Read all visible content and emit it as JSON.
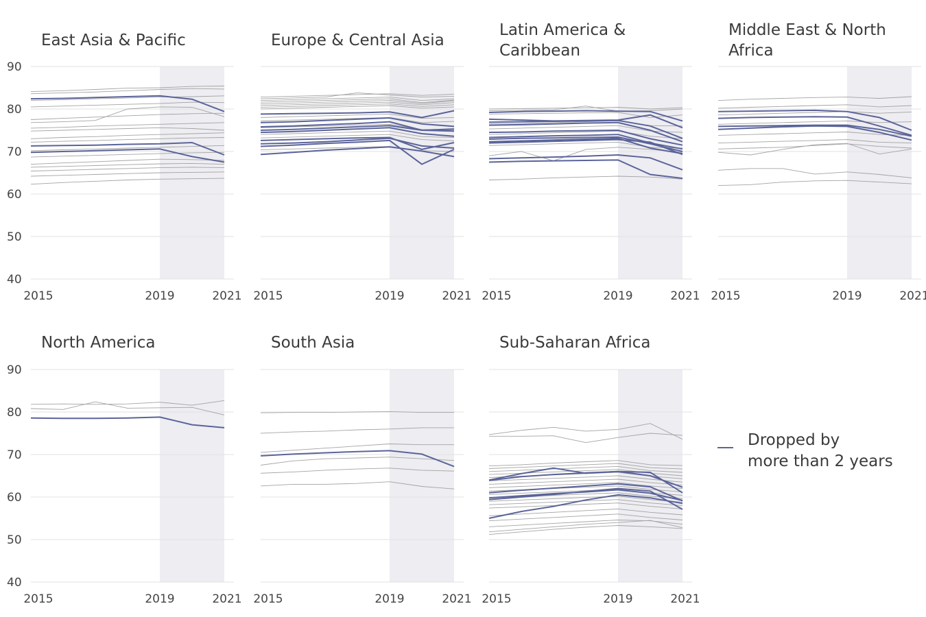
{
  "chart_data": {
    "type": "line",
    "facet_by": "region",
    "x": [
      2015,
      2016,
      2017,
      2018,
      2019,
      2020,
      2021
    ],
    "x_ticks": [
      2015,
      2019,
      2021
    ],
    "y_ticks": [
      40,
      50,
      60,
      70,
      80,
      90
    ],
    "ylim": [
      40,
      90
    ],
    "shaded_x_range": [
      2019,
      2021
    ],
    "grid": "horizontal",
    "colors": {
      "highlight": "#5a6399",
      "context": "#a3a3a3",
      "shade": "#ededf2",
      "grid": "#e6e6e6"
    },
    "legend": {
      "label_lines": [
        "Dropped by",
        "more than 2 years"
      ],
      "placement": "right"
    },
    "panels": [
      {
        "title_lines": [
          "East Asia & Pacific"
        ],
        "highlighted": [
          [
            82.4,
            82.5,
            82.7,
            82.9,
            83.1,
            82.3,
            79.4
          ],
          [
            71.3,
            71.4,
            71.5,
            71.7,
            71.8,
            72.1,
            69.2
          ],
          [
            69.8,
            70.0,
            70.2,
            70.4,
            70.6,
            68.8,
            67.5
          ]
        ],
        "context": [
          [
            84.1,
            84.3,
            84.6,
            84.9,
            85.0,
            85.3,
            85.4
          ],
          [
            83.6,
            83.8,
            84.0,
            84.3,
            84.6,
            84.8,
            84.7
          ],
          [
            82.0,
            82.2,
            82.4,
            82.6,
            82.8,
            82.9,
            83.1
          ],
          [
            80.5,
            80.7,
            80.9,
            81.1,
            81.3,
            81.6,
            81.5
          ],
          [
            77.5,
            77.8,
            78.1,
            78.4,
            78.7,
            78.9,
            79.0
          ],
          [
            76.8,
            77.0,
            77.3,
            80.0,
            80.5,
            80.4,
            78.2
          ],
          [
            75.5,
            75.7,
            76.0,
            76.2,
            76.4,
            76.6,
            76.8
          ],
          [
            74.8,
            75.0,
            75.2,
            75.4,
            75.6,
            75.4,
            75.0
          ],
          [
            73.0,
            73.3,
            73.5,
            73.8,
            74.0,
            74.2,
            74.4
          ],
          [
            72.2,
            72.4,
            72.6,
            72.8,
            73.0,
            73.2,
            73.3
          ],
          [
            70.2,
            70.4,
            70.6,
            70.8,
            71.0,
            71.2,
            71.4
          ],
          [
            68.7,
            68.9,
            69.1,
            69.3,
            69.5,
            69.7,
            69.8
          ],
          [
            67.0,
            67.3,
            67.6,
            67.9,
            68.2,
            68.1,
            67.9
          ],
          [
            66.3,
            66.5,
            66.7,
            66.9,
            67.1,
            67.2,
            67.0
          ],
          [
            65.4,
            65.6,
            65.8,
            66.0,
            66.2,
            66.3,
            66.2
          ],
          [
            64.2,
            64.4,
            64.6,
            64.8,
            65.0,
            65.1,
            65.2
          ],
          [
            62.3,
            62.7,
            63.0,
            63.3,
            63.5,
            63.6,
            63.7
          ]
        ]
      },
      {
        "title_lines": [
          "Europe & Central Asia"
        ],
        "highlighted": [
          [
            78.8,
            78.9,
            79.0,
            79.1,
            79.3,
            78.0,
            79.6
          ],
          [
            76.8,
            77.0,
            77.3,
            77.6,
            77.9,
            76.5,
            75.9
          ],
          [
            75.8,
            76.0,
            76.3,
            76.6,
            77.0,
            75.0,
            75.3
          ],
          [
            75.0,
            75.2,
            75.5,
            75.8,
            76.1,
            75.0,
            74.8
          ],
          [
            74.5,
            74.7,
            75.0,
            75.3,
            75.6,
            74.2,
            73.6
          ],
          [
            72.6,
            72.8,
            73.0,
            73.2,
            73.3,
            70.5,
            72.1
          ],
          [
            71.8,
            72.0,
            72.3,
            72.7,
            73.1,
            71.3,
            70.8
          ],
          [
            71.2,
            71.5,
            71.9,
            72.2,
            72.6,
            67.0,
            70.5
          ],
          [
            69.3,
            69.8,
            70.3,
            70.7,
            71.1,
            70.1,
            68.8
          ]
        ],
        "context": [
          [
            82.8,
            83.0,
            83.2,
            83.4,
            83.6,
            83.2,
            83.5
          ],
          [
            82.4,
            82.6,
            82.8,
            83.8,
            83.3,
            82.8,
            83.0
          ],
          [
            82.0,
            82.2,
            82.4,
            82.6,
            82.8,
            82.0,
            82.4
          ],
          [
            81.6,
            81.8,
            82.0,
            82.2,
            82.4,
            81.5,
            82.1
          ],
          [
            81.2,
            81.4,
            81.6,
            81.8,
            82.0,
            81.3,
            81.9
          ],
          [
            80.8,
            81.0,
            81.2,
            81.4,
            81.6,
            81.0,
            81.5
          ],
          [
            80.4,
            80.6,
            80.8,
            81.0,
            81.2,
            80.6,
            81.0
          ],
          [
            80.0,
            80.2,
            80.4,
            80.6,
            80.8,
            80.2,
            80.5
          ],
          [
            78.0,
            78.2,
            78.4,
            78.6,
            78.8,
            77.8,
            78.0
          ],
          [
            77.2,
            77.4,
            77.6,
            77.8,
            78.0,
            76.8,
            77.1
          ],
          [
            75.6,
            75.8,
            76.0,
            76.2,
            76.4,
            75.2,
            75.0
          ],
          [
            74.0,
            74.2,
            74.4,
            74.6,
            74.8,
            73.5,
            73.3
          ],
          [
            73.2,
            73.4,
            73.6,
            73.8,
            74.0,
            72.8,
            72.5
          ],
          [
            70.4,
            70.6,
            70.8,
            71.0,
            71.2,
            70.2,
            70.0
          ]
        ]
      },
      {
        "title_lines": [
          "Latin America &",
          "Caribbean"
        ],
        "highlighted": [
          [
            79.2,
            79.4,
            79.5,
            79.6,
            79.5,
            79.4,
            77.2
          ],
          [
            77.6,
            77.4,
            77.2,
            77.3,
            77.4,
            78.6,
            75.6
          ],
          [
            76.9,
            77.0,
            77.1,
            77.2,
            77.3,
            76.0,
            73.1
          ],
          [
            76.2,
            76.3,
            76.5,
            76.7,
            76.8,
            75.0,
            72.3
          ],
          [
            74.5,
            74.6,
            74.8,
            74.9,
            75.0,
            73.0,
            71.5
          ],
          [
            73.3,
            73.5,
            73.7,
            73.8,
            74.0,
            72.0,
            70.6
          ],
          [
            72.9,
            73.1,
            73.2,
            73.3,
            73.4,
            71.8,
            70.0
          ],
          [
            72.3,
            72.5,
            72.7,
            72.9,
            73.1,
            70.8,
            69.5
          ],
          [
            72.0,
            72.2,
            72.4,
            72.6,
            72.8,
            72.2,
            69.3
          ],
          [
            68.3,
            68.5,
            68.7,
            68.9,
            69.2,
            68.5,
            65.7
          ],
          [
            67.5,
            67.7,
            67.8,
            67.9,
            68.0,
            64.6,
            63.7
          ]
        ],
        "context": [
          [
            80.0,
            80.1,
            80.2,
            80.3,
            80.4,
            80.0,
            80.3
          ],
          [
            79.6,
            79.7,
            79.8,
            80.7,
            79.5,
            79.6,
            80.0
          ],
          [
            78.8,
            78.9,
            79.0,
            79.1,
            79.2,
            78.0,
            78.6
          ],
          [
            76.5,
            76.6,
            76.8,
            77.0,
            77.2,
            76.1,
            76.0
          ],
          [
            75.3,
            75.5,
            75.7,
            75.9,
            76.1,
            74.8,
            74.5
          ],
          [
            74.0,
            74.2,
            74.4,
            74.6,
            74.8,
            73.6,
            73.0
          ],
          [
            71.4,
            71.6,
            71.8,
            72.0,
            72.2,
            71.0,
            70.8
          ],
          [
            69.0,
            70.0,
            67.8,
            70.5,
            71.0,
            70.5,
            69.8
          ],
          [
            63.3,
            63.5,
            63.8,
            64.0,
            64.2,
            64.0,
            63.5
          ]
        ]
      },
      {
        "title_lines": [
          "Middle East & North",
          "Africa"
        ],
        "highlighted": [
          [
            79.4,
            79.5,
            79.6,
            79.7,
            79.4,
            78.0,
            75.0
          ],
          [
            77.8,
            78.0,
            78.1,
            78.2,
            78.1,
            76.0,
            73.8
          ],
          [
            75.9,
            76.0,
            76.1,
            76.2,
            76.2,
            75.2,
            73.6
          ],
          [
            75.2,
            75.5,
            75.8,
            76.0,
            75.9,
            74.5,
            72.7
          ]
        ],
        "context": [
          [
            82.0,
            82.3,
            82.5,
            82.7,
            82.8,
            82.5,
            82.9
          ],
          [
            80.2,
            80.4,
            80.6,
            80.8,
            81.0,
            80.5,
            80.8
          ],
          [
            78.6,
            78.8,
            79.0,
            79.2,
            79.4,
            79.0,
            79.3
          ],
          [
            76.4,
            76.6,
            76.8,
            77.0,
            77.2,
            76.8,
            77.0
          ],
          [
            73.8,
            74.0,
            74.2,
            74.4,
            74.6,
            74.0,
            73.8
          ],
          [
            72.0,
            72.2,
            72.4,
            72.6,
            72.8,
            72.2,
            72.0
          ],
          [
            70.6,
            70.8,
            71.0,
            71.4,
            71.8,
            71.2,
            70.8
          ],
          [
            69.8,
            69.2,
            70.5,
            71.6,
            71.9,
            69.4,
            70.6
          ],
          [
            65.6,
            66.0,
            66.0,
            64.7,
            65.2,
            64.6,
            63.8
          ],
          [
            62.0,
            62.2,
            62.8,
            63.1,
            63.2,
            62.8,
            62.4
          ]
        ]
      },
      {
        "title_lines": [
          "North America"
        ],
        "highlighted": [
          [
            78.6,
            78.5,
            78.5,
            78.6,
            78.8,
            77.0,
            76.3
          ]
        ],
        "context": [
          [
            81.8,
            81.9,
            81.8,
            81.9,
            82.3,
            81.6,
            82.7
          ],
          [
            80.8,
            80.6,
            82.4,
            80.9,
            81.0,
            81.1,
            79.3
          ]
        ]
      },
      {
        "title_lines": [
          "South Asia"
        ],
        "highlighted": [
          [
            69.7,
            70.1,
            70.4,
            70.7,
            70.9,
            70.1,
            67.2
          ]
        ],
        "context": [
          [
            79.8,
            79.9,
            79.9,
            80.0,
            80.1,
            79.9,
            79.9
          ],
          [
            75.0,
            75.3,
            75.5,
            75.8,
            76.0,
            76.3,
            76.3
          ],
          [
            70.5,
            71.0,
            71.5,
            72.0,
            72.5,
            72.3,
            72.3
          ],
          [
            67.5,
            68.5,
            69.0,
            69.2,
            69.4,
            69.0,
            68.6
          ],
          [
            65.6,
            65.9,
            66.3,
            66.6,
            66.8,
            66.3,
            66.1
          ],
          [
            62.6,
            63.0,
            63.0,
            63.2,
            63.6,
            62.5,
            61.9
          ]
        ]
      },
      {
        "title_lines": [
          "Sub-Saharan Africa"
        ],
        "highlighted": [
          [
            64.0,
            65.5,
            66.8,
            65.6,
            66.0,
            65.8,
            61.0
          ],
          [
            63.9,
            64.8,
            65.3,
            65.7,
            66.0,
            65.0,
            62.3
          ],
          [
            61.0,
            61.6,
            62.1,
            62.6,
            63.1,
            62.4,
            59.1
          ],
          [
            59.8,
            60.3,
            60.8,
            61.2,
            61.7,
            60.9,
            59.2
          ],
          [
            59.4,
            60.0,
            60.6,
            61.3,
            62.0,
            61.4,
            57.1
          ],
          [
            55.0,
            56.6,
            57.8,
            59.3,
            60.5,
            59.8,
            58.5
          ]
        ],
        "context": [
          [
            74.7,
            75.7,
            76.4,
            75.5,
            75.9,
            77.3,
            73.6
          ],
          [
            74.3,
            74.3,
            74.4,
            72.8,
            74.0,
            75.0,
            74.5
          ],
          [
            67.3,
            67.6,
            68.0,
            68.3,
            68.6,
            67.6,
            67.4
          ],
          [
            66.7,
            67.0,
            67.3,
            67.6,
            67.9,
            66.9,
            66.6
          ],
          [
            66.0,
            66.3,
            66.6,
            66.9,
            67.2,
            66.2,
            65.8
          ],
          [
            65.3,
            65.6,
            65.9,
            66.2,
            66.5,
            65.6,
            65.0
          ],
          [
            64.6,
            64.9,
            65.2,
            65.5,
            65.8,
            64.9,
            64.3
          ],
          [
            63.8,
            64.1,
            64.4,
            64.7,
            65.0,
            64.2,
            63.5
          ],
          [
            63.0,
            63.3,
            63.6,
            63.9,
            64.2,
            63.4,
            62.8
          ],
          [
            62.2,
            62.5,
            62.8,
            63.1,
            63.4,
            62.6,
            62.0
          ],
          [
            61.4,
            61.7,
            62.0,
            62.3,
            62.6,
            61.8,
            61.2
          ],
          [
            60.6,
            60.9,
            61.2,
            61.5,
            61.8,
            61.0,
            60.4
          ],
          [
            59.8,
            60.1,
            60.4,
            60.7,
            61.0,
            60.2,
            59.6
          ],
          [
            59.0,
            59.3,
            59.6,
            59.9,
            60.2,
            59.4,
            58.8
          ],
          [
            58.2,
            58.5,
            58.8,
            59.1,
            59.4,
            58.6,
            58.0
          ],
          [
            57.4,
            57.7,
            58.0,
            58.3,
            58.6,
            57.8,
            57.2
          ],
          [
            55.6,
            56.0,
            56.4,
            56.8,
            57.2,
            56.4,
            55.8
          ],
          [
            54.4,
            54.8,
            55.2,
            55.6,
            56.0,
            55.2,
            54.6
          ],
          [
            53.0,
            53.4,
            53.8,
            54.2,
            54.6,
            54.4,
            53.6
          ],
          [
            51.8,
            52.4,
            53.0,
            53.6,
            54.0,
            54.5,
            52.8
          ],
          [
            51.2,
            51.8,
            52.4,
            52.9,
            53.3,
            53.0,
            52.6
          ]
        ]
      }
    ]
  }
}
